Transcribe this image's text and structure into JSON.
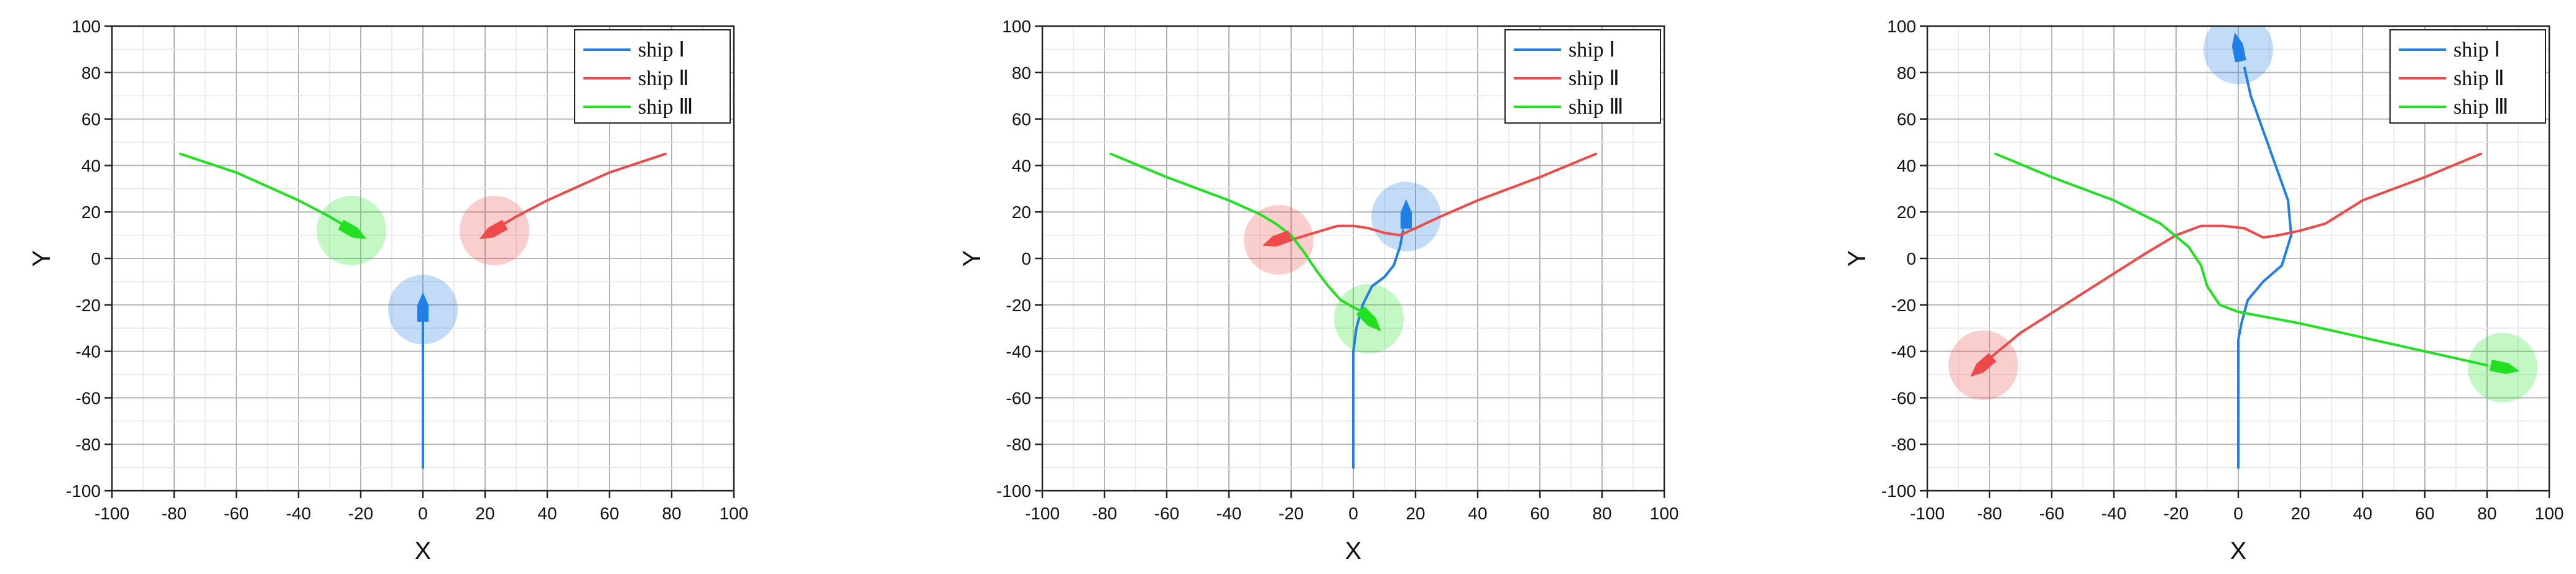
{
  "chart_data": [
    {
      "type": "line",
      "xlabel": "X",
      "ylabel": "Y",
      "xlim": [
        -100,
        100
      ],
      "ylim": [
        -100,
        100
      ],
      "xticks": [
        "-100",
        "-80",
        "-60",
        "-40",
        "-20",
        "0",
        "20",
        "40",
        "60",
        "80",
        "100"
      ],
      "yticks": [
        "100",
        "80",
        "60",
        "40",
        "20",
        "0",
        "-20",
        "-40",
        "-60",
        "-80",
        "-100"
      ],
      "grid": true,
      "legend_position": "top-right",
      "series": [
        {
          "name": "ship Ⅰ",
          "color": "#1f7fe6",
          "points": [
            [
              0,
              -90
            ],
            [
              0,
              -60
            ],
            [
              0,
              -40
            ],
            [
              0,
              -27
            ]
          ],
          "ship": [
            0,
            -22
          ],
          "heading": [
            0,
            1
          ]
        },
        {
          "name": "ship Ⅱ",
          "color": "#ef4a4a",
          "points": [
            [
              78,
              45
            ],
            [
              60,
              37
            ],
            [
              40,
              25
            ],
            [
              30,
              18
            ],
            [
              25,
              14
            ]
          ],
          "ship": [
            23,
            12
          ],
          "heading": [
            -0.87,
            -0.49
          ]
        },
        {
          "name": "ship Ⅲ",
          "color": "#20e020",
          "points": [
            [
              -78,
              45
            ],
            [
              -60,
              37
            ],
            [
              -40,
              25
            ],
            [
              -30,
              18
            ],
            [
              -25,
              14
            ]
          ],
          "ship": [
            -23,
            12
          ],
          "heading": [
            0.87,
            -0.49
          ]
        }
      ]
    },
    {
      "type": "line",
      "xlabel": "X",
      "ylabel": "Y",
      "xlim": [
        -100,
        100
      ],
      "ylim": [
        -100,
        100
      ],
      "xticks": [
        "-100",
        "-80",
        "-60",
        "-40",
        "-20",
        "0",
        "20",
        "40",
        "60",
        "80",
        "100"
      ],
      "yticks": [
        "100",
        "80",
        "60",
        "40",
        "20",
        "0",
        "-20",
        "-40",
        "-60",
        "-80",
        "-100"
      ],
      "grid": true,
      "legend_position": "top-right",
      "series": [
        {
          "name": "ship Ⅰ",
          "color": "#1f7fe6",
          "points": [
            [
              0,
              -90
            ],
            [
              0,
              -40
            ],
            [
              1,
              -30
            ],
            [
              3,
              -20
            ],
            [
              6,
              -12
            ],
            [
              10,
              -8
            ],
            [
              13,
              -3
            ],
            [
              15,
              5
            ],
            [
              16,
              12
            ]
          ],
          "ship": [
            17,
            18
          ],
          "heading": [
            0,
            1
          ]
        },
        {
          "name": "ship Ⅱ",
          "color": "#ef4a4a",
          "points": [
            [
              78,
              45
            ],
            [
              60,
              35
            ],
            [
              40,
              25
            ],
            [
              28,
              18
            ],
            [
              20,
              13
            ],
            [
              15,
              10
            ],
            [
              10,
              11
            ],
            [
              5,
              13
            ],
            [
              0,
              14
            ],
            [
              -5,
              14
            ],
            [
              -10,
              12
            ],
            [
              -15,
              10
            ],
            [
              -20,
              8
            ]
          ],
          "ship": [
            -24,
            8
          ],
          "heading": [
            -0.94,
            -0.34
          ]
        },
        {
          "name": "ship Ⅲ",
          "color": "#20e020",
          "points": [
            [
              -78,
              45
            ],
            [
              -60,
              35
            ],
            [
              -40,
              25
            ],
            [
              -30,
              19
            ],
            [
              -25,
              15
            ],
            [
              -20,
              10
            ],
            [
              -16,
              3
            ],
            [
              -12,
              -5
            ],
            [
              -8,
              -12
            ],
            [
              -4,
              -18
            ],
            [
              0,
              -21
            ],
            [
              3,
              -23
            ]
          ],
          "ship": [
            5,
            -26
          ],
          "heading": [
            0.7,
            -0.71
          ]
        }
      ]
    },
    {
      "type": "line",
      "xlabel": "X",
      "ylabel": "Y",
      "xlim": [
        -100,
        100
      ],
      "ylim": [
        -100,
        100
      ],
      "xticks": [
        "-100",
        "-80",
        "-60",
        "-40",
        "-20",
        "0",
        "20",
        "40",
        "60",
        "80",
        "100"
      ],
      "yticks": [
        "100",
        "80",
        "60",
        "40",
        "20",
        "0",
        "-20",
        "-40",
        "-60",
        "-80",
        "-100"
      ],
      "grid": true,
      "legend_position": "top-right",
      "series": [
        {
          "name": "ship Ⅰ",
          "color": "#1f7fe6",
          "points": [
            [
              0,
              -90
            ],
            [
              0,
              -35
            ],
            [
              1,
              -28
            ],
            [
              3,
              -18
            ],
            [
              8,
              -10
            ],
            [
              14,
              -3
            ],
            [
              17,
              10
            ],
            [
              16,
              25
            ],
            [
              12,
              40
            ],
            [
              8,
              55
            ],
            [
              4,
              70
            ],
            [
              2,
              82
            ]
          ],
          "ship": [
            0,
            90
          ],
          "heading": [
            -0.2,
            0.98
          ]
        },
        {
          "name": "ship Ⅱ",
          "color": "#ef4a4a",
          "points": [
            [
              78,
              45
            ],
            [
              60,
              35
            ],
            [
              40,
              25
            ],
            [
              28,
              15
            ],
            [
              20,
              12
            ],
            [
              13,
              10
            ],
            [
              8,
              9
            ],
            [
              2,
              13
            ],
            [
              -5,
              14
            ],
            [
              -12,
              14
            ],
            [
              -20,
              10
            ],
            [
              -30,
              2
            ],
            [
              -50,
              -15
            ],
            [
              -70,
              -32
            ],
            [
              -80,
              -43
            ]
          ],
          "ship": [
            -82,
            -46
          ],
          "heading": [
            -0.75,
            -0.66
          ]
        },
        {
          "name": "ship Ⅲ",
          "color": "#20e020",
          "points": [
            [
              -78,
              45
            ],
            [
              -60,
              35
            ],
            [
              -40,
              25
            ],
            [
              -25,
              15
            ],
            [
              -16,
              5
            ],
            [
              -12,
              -3
            ],
            [
              -10,
              -12
            ],
            [
              -6,
              -20
            ],
            [
              0,
              -23
            ],
            [
              20,
              -28
            ],
            [
              40,
              -34
            ],
            [
              60,
              -40
            ],
            [
              80,
              -46
            ]
          ],
          "ship": [
            85,
            -47
          ],
          "heading": [
            0.98,
            -0.2
          ]
        }
      ]
    }
  ]
}
